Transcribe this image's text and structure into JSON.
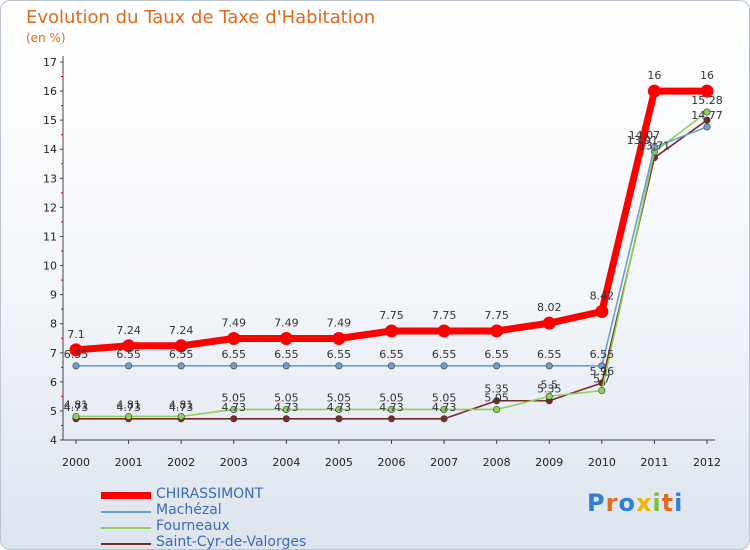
{
  "chart_data": {
    "type": "line",
    "title": "Evolution du Taux de Taxe d'Habitation",
    "subtitle": "(en %)",
    "categories": [
      "2000",
      "2001",
      "2002",
      "2003",
      "2004",
      "2005",
      "2006",
      "2007",
      "2008",
      "2009",
      "2010",
      "2011",
      "2012"
    ],
    "ylim": [
      4,
      17
    ],
    "yticks": [
      4,
      5,
      6,
      7,
      8,
      9,
      10,
      11,
      12,
      13,
      14,
      15,
      16,
      17
    ],
    "grid": false,
    "legend_position": "bottom-left",
    "series": [
      {
        "name": "CHIRASSIMONT",
        "color": "#ff0000",
        "values": [
          7.1,
          7.24,
          7.24,
          7.49,
          7.49,
          7.49,
          7.75,
          7.75,
          7.75,
          8.02,
          8.42,
          16,
          16
        ],
        "labels": [
          "7.1",
          "7.24",
          "7.24",
          "7.49",
          "7.49",
          "7.49",
          "7.75",
          "7.75",
          "7.75",
          "8.02",
          "8.42",
          "16",
          "16"
        ]
      },
      {
        "name": "Machézal",
        "color": "#6f9fd0",
        "values": [
          6.55,
          6.55,
          6.55,
          6.55,
          6.55,
          6.55,
          6.55,
          6.55,
          6.55,
          6.55,
          6.55,
          14.07,
          14.77
        ],
        "labels": [
          "6.55",
          "6.55",
          "6.55",
          "6.55",
          "6.55",
          "6.55",
          "6.55",
          "6.55",
          "6.55",
          "6.55",
          "6.55",
          "14.07",
          "14.77"
        ]
      },
      {
        "name": "Fourneaux",
        "color": "#8ed05a",
        "values": [
          4.81,
          4.81,
          4.81,
          5.05,
          5.05,
          5.05,
          5.05,
          5.05,
          5.05,
          5.5,
          5.7,
          13.91,
          15.28
        ],
        "labels": [
          "4.81",
          "4.81",
          "4.81",
          "5.05",
          "5.05",
          "5.05",
          "5.05",
          "5.05",
          "5.05",
          "5.5",
          "5.7",
          "13.91",
          "15.28"
        ]
      },
      {
        "name": "Saint-Cyr-de-Valorges",
        "color": "#7a2a2a",
        "values": [
          4.73,
          4.73,
          4.73,
          4.73,
          4.73,
          4.73,
          4.73,
          4.73,
          5.35,
          5.35,
          5.96,
          13.71,
          15.0
        ],
        "labels": [
          "4.73",
          "4.73",
          "4.73",
          "4.73",
          "4.73",
          "4.73",
          "4.73",
          "4.73",
          "5.35",
          "5.35",
          "5.96",
          "13.71",
          ""
        ]
      }
    ]
  },
  "legend": {
    "items": [
      {
        "label": "CHIRASSIMONT",
        "color": "#ff0000"
      },
      {
        "label": "Machézal",
        "color": "#6f9fd0"
      },
      {
        "label": "Fourneaux",
        "color": "#8ed05a"
      },
      {
        "label": "Saint-Cyr-de-Valorges",
        "color": "#7a2a2a"
      }
    ]
  },
  "logo": {
    "text": "Proxiti"
  }
}
